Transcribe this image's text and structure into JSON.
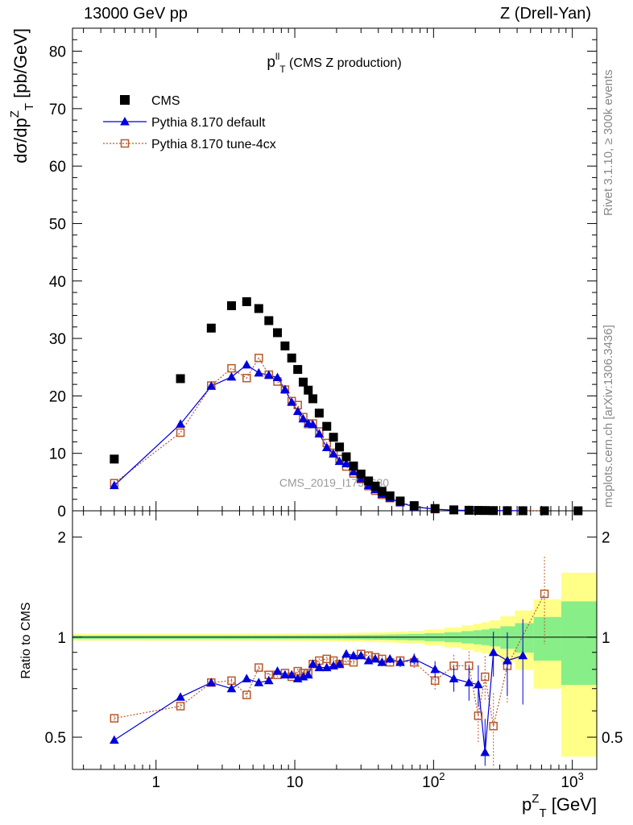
{
  "header": {
    "left": "13000 GeV pp",
    "right": "Z (Drell-Yan)"
  },
  "side_labels": {
    "rivet": "Rivet 3.1.10, ≥ 300k events",
    "mcplots": "mcplots.cern.ch [arXiv:1306.3436]"
  },
  "chart_data": {
    "type": "scatter",
    "title": "p_T^ll (CMS Z production)",
    "title_parts": {
      "main": "p",
      "sup": "ll",
      "sub": "T",
      "rest": " (CMS Z production)"
    },
    "watermark": "CMS_2019_I1753680",
    "xlabel": "p_T^Z [GeV]",
    "xlabel_parts": {
      "main": "p",
      "sup": "Z",
      "sub": "T",
      "rest": " [GeV]"
    },
    "ylabel": "dσ/dp_T^Z [pb/GeV]",
    "ylabel_parts": {
      "main": "dσ/dp",
      "sup": "Z",
      "sub": "T",
      "rest": " [pb/GeV]"
    },
    "xscale": "log",
    "xlim": [
      0.25,
      1500
    ],
    "ylim": [
      0,
      84
    ],
    "x_ticks": [
      {
        "value": 1,
        "label": "1",
        "exp": ""
      },
      {
        "value": 10,
        "label": "10",
        "exp": ""
      },
      {
        "value": 100,
        "label": "10",
        "exp": "2"
      },
      {
        "value": 1000,
        "label": "10",
        "exp": "3"
      }
    ],
    "y_ticks": [
      0,
      10,
      20,
      30,
      40,
      50,
      60,
      70,
      80
    ],
    "ratio": {
      "ylabel": "Ratio to CMS",
      "ylim": [
        0.4,
        2.4
      ],
      "scale": "log",
      "ticks": [
        {
          "value": 0.5,
          "label": "0.5"
        },
        {
          "value": 1,
          "label": "1"
        },
        {
          "value": 2,
          "label": "2"
        }
      ]
    },
    "legend": {
      "position": "top-left",
      "entries": [
        {
          "label": "CMS",
          "series": "cms"
        },
        {
          "label": "Pythia 8.170 default",
          "series": "default"
        },
        {
          "label": "Pythia 8.170 tune-4cx",
          "series": "tune4cx"
        }
      ]
    },
    "colors": {
      "cms": "#000000",
      "default": "#0000dd",
      "tune4cx": "#b8582a",
      "band_inner": "#88ee88",
      "band_outer": "#ffff88"
    },
    "x": [
      0.5,
      1.5,
      2.5,
      3.5,
      4.5,
      5.5,
      6.5,
      7.5,
      8.5,
      9.5,
      10.5,
      11.5,
      12.5,
      13.5,
      15,
      17,
      19,
      21,
      23.5,
      26.5,
      30,
      34,
      38,
      42.5,
      48.5,
      57.5,
      72.5,
      102.5,
      140,
      180,
      210,
      235,
      270,
      340,
      440,
      630,
      1100
    ],
    "series": [
      {
        "name": "CMS",
        "id": "cms",
        "values": [
          9.0,
          23.0,
          31.8,
          35.7,
          36.4,
          35.2,
          33.1,
          31.0,
          28.7,
          26.6,
          24.6,
          22.4,
          21.0,
          19.5,
          17.0,
          14.7,
          12.8,
          11.1,
          9.4,
          7.8,
          6.4,
          5.2,
          4.3,
          3.4,
          2.6,
          1.7,
          0.9,
          0.39,
          0.16,
          0.09,
          0.065,
          0.05,
          0.035,
          0.02,
          0.01,
          0.004,
          0.001
        ]
      },
      {
        "name": "Pythia 8.170 default",
        "id": "default",
        "values": [
          4.4,
          15.1,
          21.7,
          23.3,
          25.4,
          24.0,
          23.6,
          23.2,
          21.1,
          18.9,
          17.3,
          16.0,
          15.2,
          15.0,
          13.4,
          11.0,
          9.9,
          8.6,
          8.2,
          6.8,
          5.6,
          4.4,
          3.7,
          2.9,
          2.2,
          1.4,
          0.7,
          0.27,
          0.11,
          0.06,
          0.05,
          0.04,
          0.03,
          0.02,
          0.01,
          null,
          null
        ],
        "ratio": [
          0.49,
          0.66,
          0.73,
          0.7,
          0.75,
          0.73,
          0.74,
          0.79,
          0.77,
          0.77,
          0.75,
          0.76,
          0.77,
          0.83,
          0.81,
          0.81,
          0.82,
          0.83,
          0.89,
          0.88,
          0.88,
          0.85,
          0.86,
          0.84,
          0.86,
          0.84,
          0.86,
          0.8,
          0.75,
          0.73,
          0.72,
          0.45,
          0.9,
          0.85,
          0.88,
          null,
          null
        ]
      },
      {
        "name": "Pythia 8.170 tune-4cx",
        "id": "tune4cx",
        "values": [
          4.8,
          13.6,
          21.8,
          24.8,
          23.1,
          26.6,
          23.7,
          22.5,
          21.1,
          19.1,
          18.4,
          16.3,
          15.1,
          15.2,
          13.8,
          11.8,
          10.1,
          9.0,
          7.7,
          6.5,
          5.5,
          4.3,
          3.5,
          2.8,
          2.2,
          1.5,
          0.8,
          0.29,
          0.12,
          0.07,
          0.04,
          0.04,
          0.02,
          0.017,
          null,
          0.005,
          null
        ],
        "ratio": [
          0.57,
          0.62,
          0.73,
          0.74,
          0.67,
          0.81,
          0.77,
          0.77,
          0.78,
          0.76,
          0.79,
          0.78,
          0.78,
          0.83,
          0.85,
          0.86,
          0.85,
          0.83,
          0.85,
          0.84,
          0.89,
          0.88,
          0.87,
          0.86,
          0.84,
          0.85,
          0.84,
          0.74,
          0.82,
          0.82,
          0.58,
          0.76,
          0.54,
          0.82,
          null,
          1.35,
          null
        ]
      }
    ]
  }
}
